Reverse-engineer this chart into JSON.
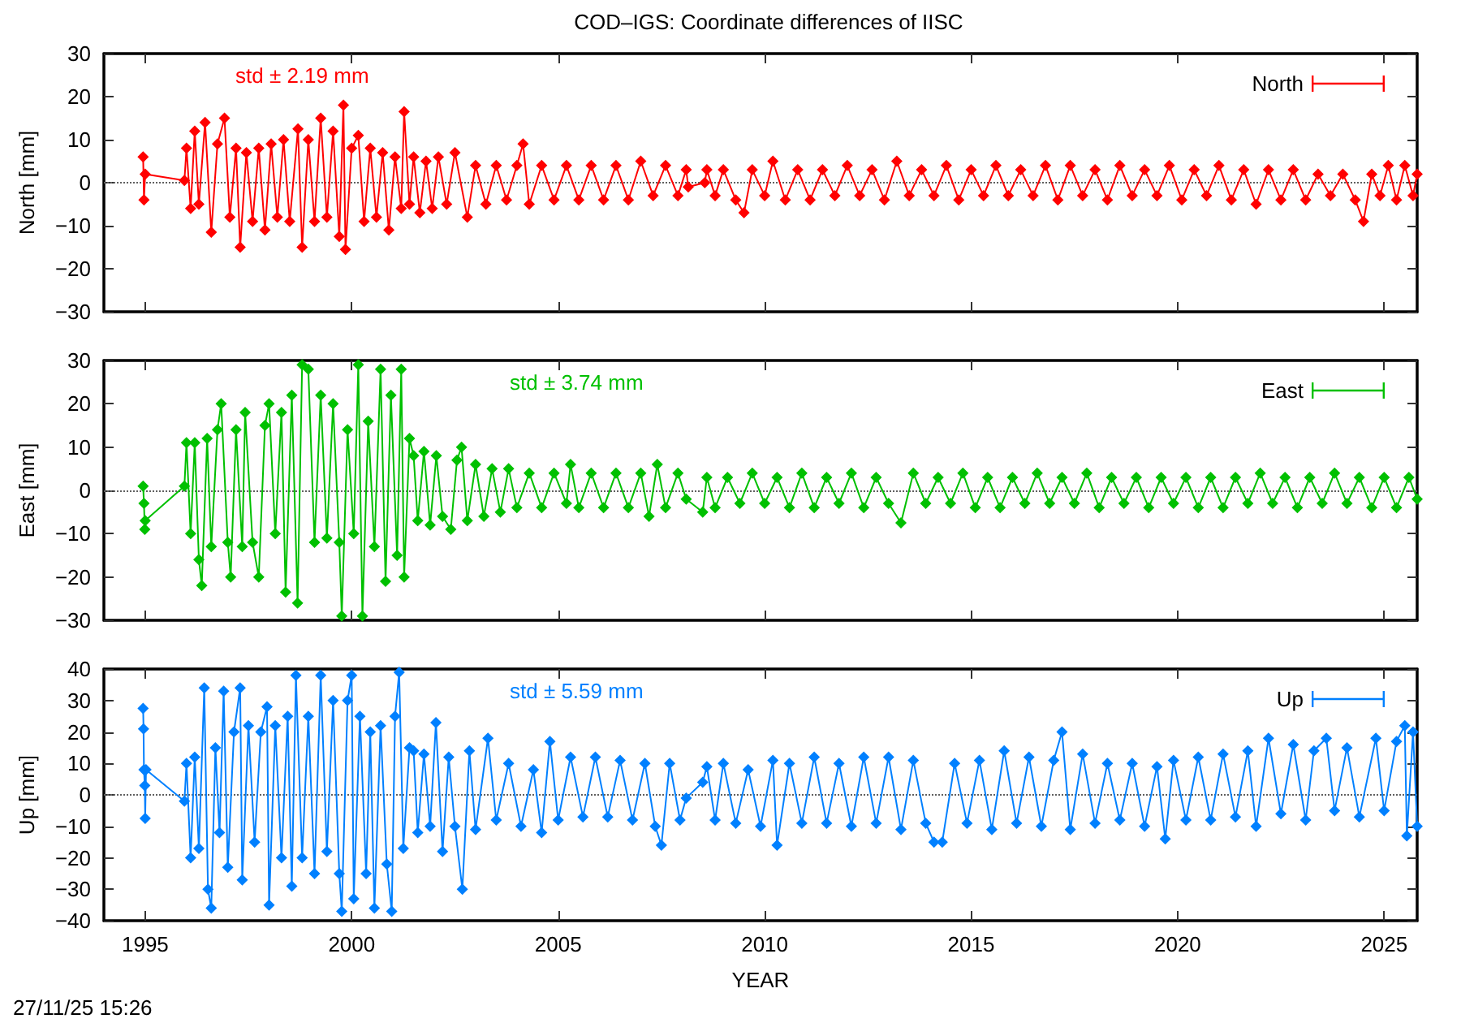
{
  "chart_data": [
    {
      "type": "line",
      "title": "COD–IGS: Coordinate differences of IISC",
      "ylabel": "North [mm]",
      "xlim": [
        1994,
        2025.8
      ],
      "xticks": [
        1995,
        2000,
        2005,
        2010,
        2015,
        2020,
        2025
      ],
      "ylim": [
        -30,
        30
      ],
      "yticks": [
        -30,
        -20,
        -10,
        0,
        10,
        20,
        30
      ],
      "tick_labels": "y",
      "legend": "top right",
      "marker": "diamond",
      "line_style": "solid",
      "ref_lines": [
        {
          "axis": "y",
          "value": 0,
          "color": "#606060",
          "line_style": "dotted"
        }
      ],
      "annotations": [
        "std ± 2.19 mm"
      ],
      "x": [
        1994.95,
        1994.97,
        1995.0,
        1995.95,
        1996.0,
        1996.1,
        1996.2,
        1996.3,
        1996.45,
        1996.6,
        1996.75,
        1996.92,
        1997.05,
        1997.2,
        1997.3,
        1997.45,
        1997.6,
        1997.75,
        1997.9,
        1998.05,
        1998.2,
        1998.35,
        1998.5,
        1998.7,
        1998.8,
        1998.95,
        1999.1,
        1999.25,
        1999.4,
        1999.55,
        1999.7,
        1999.8,
        1999.85,
        2000.0,
        2000.16,
        2000.3,
        2000.45,
        2000.6,
        2000.75,
        2000.9,
        2001.05,
        2001.2,
        2001.27,
        2001.4,
        2001.5,
        2001.65,
        2001.8,
        2001.95,
        2002.1,
        2002.3,
        2002.5,
        2002.8,
        2003.0,
        2003.25,
        2003.5,
        2003.75,
        2004.0,
        2004.15,
        2004.3,
        2004.6,
        2004.9,
        2005.2,
        2005.5,
        2005.8,
        2006.1,
        2006.4,
        2006.7,
        2007.0,
        2007.3,
        2007.6,
        2007.9,
        2008.1,
        2008.15,
        2008.55,
        2008.6,
        2008.8,
        2009.0,
        2009.3,
        2009.5,
        2009.7,
        2010.0,
        2010.2,
        2010.5,
        2010.8,
        2011.1,
        2011.4,
        2011.7,
        2012.0,
        2012.3,
        2012.6,
        2012.9,
        2013.2,
        2013.5,
        2013.8,
        2014.1,
        2014.4,
        2014.7,
        2015.0,
        2015.3,
        2015.6,
        2015.9,
        2016.2,
        2016.5,
        2016.8,
        2017.1,
        2017.4,
        2017.7,
        2018.0,
        2018.3,
        2018.6,
        2018.9,
        2019.2,
        2019.5,
        2019.8,
        2020.1,
        2020.4,
        2020.7,
        2021.0,
        2021.3,
        2021.6,
        2021.9,
        2022.2,
        2022.5,
        2022.8,
        2023.1,
        2023.4,
        2023.7,
        2024.0,
        2024.3,
        2024.5,
        2024.7,
        2024.9,
        2025.1,
        2025.3,
        2025.5,
        2025.7,
        2025.8
      ],
      "series": [
        {
          "name": "North",
          "color": "#ff0000",
          "values": [
            6,
            -4,
            2,
            0.5,
            8,
            -6,
            12,
            -5,
            14,
            -11.5,
            9,
            15,
            -8,
            8,
            -15,
            7,
            -9,
            8,
            -11,
            9,
            -8,
            10,
            -9,
            12.5,
            -15,
            10,
            -9,
            15,
            -8,
            12,
            -12.5,
            18,
            -15.5,
            8,
            11,
            -9,
            8,
            -8,
            7,
            -11,
            6,
            -6,
            16.5,
            -5,
            6,
            -7,
            5,
            -6,
            6,
            -5,
            7,
            -8,
            4,
            -5,
            4,
            -4,
            4,
            9,
            -5,
            4,
            -4,
            4,
            -4,
            4,
            -4,
            4,
            -4,
            5,
            -3,
            4,
            -3,
            3,
            -1,
            0,
            3,
            -3,
            3,
            -4,
            -7,
            3,
            -3,
            5,
            -4,
            3,
            -4,
            3,
            -3,
            4,
            -3,
            3,
            -4,
            5,
            -3,
            3,
            -3,
            4,
            -4,
            3,
            -3,
            4,
            -3,
            3,
            -3,
            4,
            -4,
            4,
            -3,
            3,
            -4,
            4,
            -3,
            3,
            -3,
            4,
            -4,
            3,
            -3,
            4,
            -4,
            3,
            -5,
            3,
            -4,
            3,
            -4,
            2,
            -3,
            2,
            -4,
            -9,
            2,
            -3,
            4,
            -4,
            4,
            -3,
            2
          ]
        }
      ]
    },
    {
      "type": "line",
      "ylabel": "East [mm]",
      "xlim": [
        1994,
        2025.8
      ],
      "xticks": [
        1995,
        2000,
        2005,
        2010,
        2015,
        2020,
        2025
      ],
      "ylim": [
        -30,
        30
      ],
      "yticks": [
        -30,
        -20,
        -10,
        0,
        10,
        20,
        30
      ],
      "tick_labels": "y",
      "legend": "top right",
      "marker": "diamond",
      "line_style": "solid",
      "ref_lines": [
        {
          "axis": "y",
          "value": 0,
          "color": "#606060",
          "line_style": "dotted"
        }
      ],
      "annotations": [
        "std ± 3.74 mm"
      ],
      "x": [
        1994.95,
        1994.97,
        1994.99,
        1995.0,
        1995.95,
        1996.0,
        1996.1,
        1996.2,
        1996.3,
        1996.37,
        1996.5,
        1996.6,
        1996.75,
        1996.84,
        1997.0,
        1997.07,
        1997.2,
        1997.35,
        1997.42,
        1997.6,
        1997.75,
        1997.9,
        1998.0,
        1998.15,
        1998.3,
        1998.4,
        1998.55,
        1998.69,
        1998.8,
        1998.95,
        1999.1,
        1999.25,
        1999.4,
        1999.55,
        1999.7,
        1999.76,
        1999.9,
        2000.05,
        2000.16,
        2000.26,
        2000.4,
        2000.55,
        2000.7,
        2000.82,
        2000.95,
        2001.1,
        2001.2,
        2001.27,
        2001.4,
        2001.5,
        2001.6,
        2001.75,
        2001.9,
        2002.05,
        2002.2,
        2002.4,
        2002.55,
        2002.66,
        2002.8,
        2003.0,
        2003.2,
        2003.4,
        2003.6,
        2003.8,
        2004.0,
        2004.3,
        2004.6,
        2004.9,
        2005.2,
        2005.3,
        2005.5,
        2005.8,
        2006.1,
        2006.4,
        2006.7,
        2007.0,
        2007.2,
        2007.4,
        2007.6,
        2007.9,
        2008.1,
        2008.5,
        2008.6,
        2008.8,
        2009.1,
        2009.4,
        2009.7,
        2010.0,
        2010.3,
        2010.6,
        2010.9,
        2011.2,
        2011.5,
        2011.8,
        2012.1,
        2012.4,
        2012.7,
        2013.0,
        2013.3,
        2013.6,
        2013.9,
        2014.2,
        2014.5,
        2014.8,
        2015.1,
        2015.4,
        2015.7,
        2016.0,
        2016.3,
        2016.6,
        2016.9,
        2017.2,
        2017.5,
        2017.8,
        2018.1,
        2018.4,
        2018.7,
        2019.0,
        2019.3,
        2019.6,
        2019.9,
        2020.2,
        2020.5,
        2020.8,
        2021.1,
        2021.4,
        2021.7,
        2022.0,
        2022.3,
        2022.6,
        2022.9,
        2023.2,
        2023.5,
        2023.8,
        2024.1,
        2024.4,
        2024.7,
        2025.0,
        2025.3,
        2025.6,
        2025.8
      ],
      "series": [
        {
          "name": "East",
          "color": "#00c000",
          "values": [
            1,
            -3,
            -9,
            -7,
            1,
            11,
            -10,
            11,
            -16,
            -22,
            12,
            -13,
            14,
            20,
            -12,
            -20,
            14,
            -13,
            18,
            -12,
            -20,
            15,
            20,
            -10,
            18,
            -23.5,
            22,
            -26,
            29,
            28,
            -12,
            22,
            -11,
            20,
            -12,
            -29,
            14,
            -10,
            29,
            -29,
            16,
            -13,
            28,
            -21,
            22,
            -15,
            28,
            -20,
            12,
            8,
            -7,
            9,
            -8,
            8,
            -6,
            -9,
            7,
            10,
            -7,
            6,
            -6,
            5,
            -5,
            5,
            -4,
            4,
            -4,
            4,
            -3,
            6,
            -4,
            4,
            -4,
            4,
            -4,
            4,
            -6,
            6,
            -4,
            4,
            -2,
            -5,
            3,
            -4,
            3,
            -3,
            4,
            -3,
            3,
            -4,
            4,
            -4,
            3,
            -3,
            4,
            -4,
            3,
            -3,
            -7.5,
            4,
            -3,
            3,
            -3,
            4,
            -4,
            3,
            -4,
            3,
            -3,
            4,
            -3,
            3,
            -3,
            4,
            -4,
            3,
            -3,
            3,
            -4,
            3,
            -3,
            3,
            -4,
            3,
            -4,
            3,
            -3,
            4,
            -3,
            3,
            -4,
            3,
            -3,
            4,
            -3,
            3,
            -4,
            3,
            -4,
            3,
            -2
          ]
        }
      ]
    },
    {
      "type": "line",
      "ylabel": "Up [mm]",
      "xlabel": "YEAR",
      "xlim": [
        1994,
        2025.8
      ],
      "xticks": [
        1995,
        2000,
        2005,
        2010,
        2015,
        2020,
        2025
      ],
      "ylim": [
        -40,
        40
      ],
      "yticks": [
        -40,
        -30,
        -20,
        -10,
        0,
        10,
        20,
        30,
        40
      ],
      "legend": "top right",
      "marker": "diamond",
      "line_style": "solid",
      "ref_lines": [
        {
          "axis": "y",
          "value": 0,
          "color": "#606060",
          "line_style": "dotted"
        }
      ],
      "annotations": [
        "std ± 5.59 mm",
        "27/11/25 15:26"
      ],
      "x": [
        1994.95,
        1994.96,
        1994.97,
        1994.99,
        1995.0,
        1995.02,
        1995.95,
        1996.0,
        1996.1,
        1996.2,
        1996.3,
        1996.43,
        1996.52,
        1996.6,
        1996.7,
        1996.8,
        1996.9,
        1997.0,
        1997.15,
        1997.3,
        1997.35,
        1997.5,
        1997.65,
        1997.8,
        1997.95,
        1998.0,
        1998.15,
        1998.3,
        1998.45,
        1998.55,
        1998.65,
        1998.8,
        1998.95,
        1999.1,
        1999.25,
        1999.4,
        1999.55,
        1999.7,
        1999.76,
        1999.9,
        2000.0,
        2000.05,
        2000.2,
        2000.35,
        2000.45,
        2000.55,
        2000.7,
        2000.85,
        2000.97,
        2001.05,
        2001.15,
        2001.25,
        2001.4,
        2001.5,
        2001.6,
        2001.75,
        2001.9,
        2002.04,
        2002.2,
        2002.35,
        2002.5,
        2002.68,
        2002.85,
        2003.0,
        2003.3,
        2003.5,
        2003.8,
        2004.1,
        2004.4,
        2004.6,
        2004.8,
        2005.0,
        2005.3,
        2005.6,
        2005.9,
        2006.2,
        2006.5,
        2006.8,
        2007.1,
        2007.35,
        2007.5,
        2007.7,
        2007.95,
        2008.1,
        2008.5,
        2008.6,
        2008.8,
        2009.0,
        2009.3,
        2009.6,
        2009.9,
        2010.2,
        2010.3,
        2010.6,
        2010.9,
        2011.2,
        2011.5,
        2011.8,
        2012.1,
        2012.4,
        2012.7,
        2013.0,
        2013.3,
        2013.6,
        2013.9,
        2014.1,
        2014.3,
        2014.6,
        2014.9,
        2015.2,
        2015.5,
        2015.8,
        2016.1,
        2016.4,
        2016.7,
        2017.0,
        2017.2,
        2017.4,
        2017.7,
        2018.0,
        2018.3,
        2018.6,
        2018.9,
        2019.2,
        2019.5,
        2019.7,
        2019.9,
        2020.2,
        2020.5,
        2020.8,
        2021.1,
        2021.4,
        2021.7,
        2021.9,
        2022.2,
        2022.5,
        2022.8,
        2023.1,
        2023.3,
        2023.6,
        2023.8,
        2024.1,
        2024.4,
        2024.8,
        2025.0,
        2025.3,
        2025.5,
        2025.55,
        2025.7,
        2025.8
      ],
      "series": [
        {
          "name": "Up",
          "color": "#0080ff",
          "values": [
            27.5,
            21,
            8,
            3,
            -7.5,
            8,
            -2,
            10,
            -20,
            12,
            -17,
            34,
            -30,
            -36,
            15,
            -12,
            33,
            -23,
            20,
            34,
            -27,
            22,
            -15,
            20,
            28,
            -35,
            22,
            -20,
            25,
            -29,
            38,
            -20,
            25,
            -25,
            38,
            -18,
            30,
            -25,
            -37,
            30,
            38,
            -33,
            25,
            -25,
            20,
            -36,
            22,
            -22,
            -37,
            25,
            39,
            -17,
            15,
            14,
            -12,
            13,
            -10,
            23,
            -18,
            12,
            -10,
            -30,
            14,
            -11,
            18,
            -8,
            10,
            -10,
            8,
            -12,
            17,
            -8,
            12,
            -7,
            12,
            -7,
            11,
            -8,
            10,
            -10,
            -16,
            10,
            -8,
            -1,
            4,
            9,
            -8,
            10,
            -9,
            8,
            -10,
            11,
            -16,
            10,
            -9,
            12,
            -9,
            10,
            -10,
            12,
            -9,
            12,
            -11,
            11,
            -9,
            -15,
            -15,
            10,
            -9,
            11,
            -11,
            14,
            -9,
            12,
            -10,
            11,
            20,
            -11,
            13,
            -9,
            10,
            -8,
            10,
            -10,
            9,
            -14,
            11,
            -8,
            12,
            -8,
            13,
            -7,
            14,
            -10,
            18,
            -6,
            16,
            -8,
            14,
            18,
            -5,
            15,
            -7,
            18,
            -5,
            17,
            22,
            -13,
            20,
            -10
          ]
        }
      ]
    }
  ]
}
